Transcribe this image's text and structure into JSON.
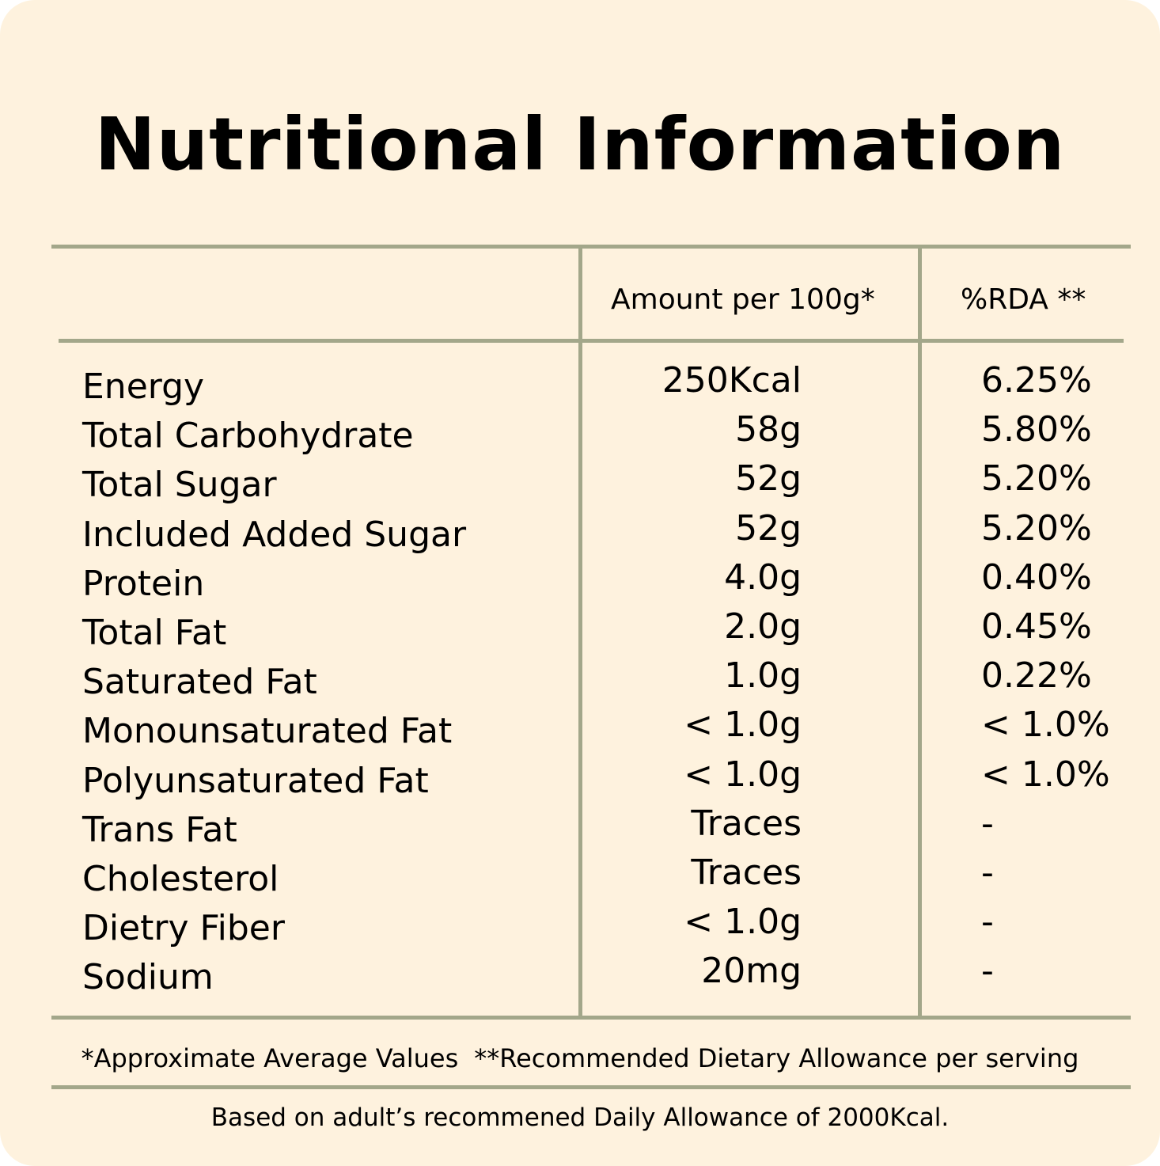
{
  "title": "Nutritional Information",
  "colors": {
    "background": "#fef2de",
    "rule": "#a3a78a",
    "text": "#000000"
  },
  "header": {
    "amount": "Amount per 100g*",
    "rda": "%RDA **"
  },
  "rows": [
    {
      "nutrient": "Energy",
      "amount": "250Kcal",
      "rda": "6.25%"
    },
    {
      "nutrient": "Total Carbohydrate",
      "amount": "58g",
      "rda": "5.80%"
    },
    {
      "nutrient": "Total Sugar",
      "amount": "52g",
      "rda": "5.20%"
    },
    {
      "nutrient": "Included Added Sugar",
      "amount": "52g",
      "rda": "5.20%"
    },
    {
      "nutrient": "Protein",
      "amount": "4.0g",
      "rda": "0.40%"
    },
    {
      "nutrient": "Total Fat",
      "amount": "2.0g",
      "rda": "0.45%"
    },
    {
      "nutrient": "Saturated Fat",
      "amount": "1.0g",
      "rda": "0.22%"
    },
    {
      "nutrient": "Monounsaturated Fat",
      "amount": "< 1.0g",
      "rda": "< 1.0%"
    },
    {
      "nutrient": "Polyunsaturated Fat",
      "amount": "< 1.0g",
      "rda": "< 1.0%"
    },
    {
      "nutrient": "Trans Fat",
      "amount": "Traces",
      "rda": "-"
    },
    {
      "nutrient": "Cholesterol",
      "amount": "Traces",
      "rda": "-"
    },
    {
      "nutrient": "Dietry Fiber",
      "amount": "< 1.0g",
      "rda": "-"
    },
    {
      "nutrient": "Sodium",
      "amount": "20mg",
      "rda": "-"
    }
  ],
  "footnotes": {
    "approx": "*Approximate Average Values",
    "rda_def": "**Recommended Dietary Allowance per serving",
    "basis": "Based on adult’s recommened Daily Allowance of 2000Kcal."
  }
}
